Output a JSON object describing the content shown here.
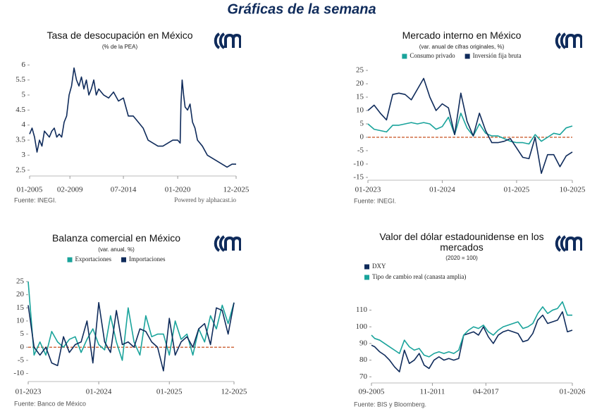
{
  "page_title": "Gráficas de la semana",
  "chart_data": [
    {
      "type": "line",
      "title": "Tasa de desocupación en México",
      "subtitle": "(% de la PEA)",
      "x": [
        2005.0,
        2005.25,
        2005.5,
        2005.75,
        2006.0,
        2006.25,
        2006.5,
        2006.75,
        2007.0,
        2007.25,
        2007.5,
        2007.75,
        2008.0,
        2008.25,
        2008.5,
        2008.75,
        2009.0,
        2009.25,
        2009.5,
        2009.75,
        2010.0,
        2010.25,
        2010.5,
        2010.75,
        2011.0,
        2011.25,
        2011.5,
        2011.75,
        2012.0,
        2012.5,
        2013.0,
        2013.5,
        2014.0,
        2014.5,
        2015.0,
        2015.5,
        2016.0,
        2016.5,
        2017.0,
        2017.5,
        2018.0,
        2018.5,
        2019.0,
        2019.5,
        2020.0,
        2020.25,
        2020.33,
        2020.45,
        2020.6,
        2020.75,
        2021.0,
        2021.25,
        2021.5,
        2021.75,
        2022.0,
        2022.5,
        2023.0,
        2023.5,
        2024.0,
        2024.5,
        2025.0,
        2025.5,
        2025.917
      ],
      "values": [
        3.7,
        3.9,
        3.6,
        3.1,
        3.5,
        3.3,
        3.8,
        3.7,
        3.6,
        3.8,
        3.9,
        3.6,
        3.7,
        3.6,
        4.1,
        4.3,
        5.0,
        5.3,
        5.9,
        5.5,
        5.3,
        5.6,
        5.2,
        5.5,
        5.0,
        5.2,
        5.5,
        5.0,
        5.2,
        5.0,
        4.9,
        5.1,
        4.8,
        4.9,
        4.3,
        4.3,
        4.1,
        3.9,
        3.5,
        3.4,
        3.3,
        3.3,
        3.4,
        3.5,
        3.5,
        3.4,
        4.7,
        5.5,
        5.0,
        4.6,
        4.5,
        4.7,
        4.1,
        3.9,
        3.5,
        3.3,
        3.0,
        2.9,
        2.8,
        2.7,
        2.6,
        2.7,
        2.7
      ],
      "color": "#0f2b5b",
      "xlim": [
        2005.0,
        2025.917
      ],
      "xticks": [
        {
          "value": 2005.0,
          "label": "01-2005"
        },
        {
          "value": 2009.083,
          "label": "02-2009"
        },
        {
          "value": 2014.5,
          "label": "07-2014"
        },
        {
          "value": 2020.0,
          "label": "01-2020"
        },
        {
          "value": 2025.917,
          "label": "12-2025"
        }
      ],
      "ylim": [
        2.4,
        6.1
      ],
      "yticks": [
        2.5,
        3,
        3.5,
        4,
        4.5,
        5,
        5.5,
        6
      ],
      "source": "Fuente: INEGI.",
      "credit": "Powered by alphacast.io"
    },
    {
      "type": "line",
      "title": "Mercado interno en México",
      "subtitle": "(var. anual de cifras originales, %)",
      "categories": [
        "01-2023",
        null,
        null,
        null,
        null,
        null,
        null,
        null,
        null,
        null,
        null,
        null,
        "01-2024",
        null,
        null,
        null,
        null,
        null,
        null,
        null,
        null,
        null,
        null,
        null,
        "01-2025",
        null,
        null,
        null,
        null,
        null,
        null,
        null,
        null,
        "10-2025"
      ],
      "series": [
        {
          "name": "Consumo privado",
          "color": "#19a39b",
          "values": [
            5,
            3,
            2.5,
            2,
            4.5,
            4.5,
            5,
            5.5,
            5,
            5.5,
            5,
            3,
            4,
            7.5,
            1,
            9,
            3.5,
            0.5,
            5,
            1.5,
            0.5,
            0.5,
            -0.5,
            -1.5,
            -2,
            -2,
            -2.5,
            1,
            -1.5,
            0,
            1.5,
            1,
            3.5,
            4.2
          ]
        },
        {
          "name": "Inversión fija bruta",
          "color": "#0f2b5b",
          "values": [
            10,
            12,
            9,
            6.5,
            16,
            16.5,
            16,
            14,
            18,
            22,
            15,
            10,
            12.5,
            11,
            1,
            16.5,
            6,
            0.5,
            9,
            2.5,
            -2,
            -2,
            -1.5,
            -0.5,
            -4,
            -7.5,
            -8,
            0,
            -13.5,
            -6.5,
            -6.5,
            -11,
            -7,
            -5.5
          ]
        }
      ],
      "ylim": [
        -15,
        25
      ],
      "yticks": [
        -15,
        -10,
        -5,
        0,
        5,
        10,
        15,
        20,
        25
      ],
      "reference_line": 0,
      "reference_color": "#c8501e",
      "legend": "top",
      "source": "Fuente: INEGI."
    },
    {
      "type": "line",
      "title": "Balanza comercial en México",
      "subtitle": "(var. anual, %)",
      "categories": [
        "01-2023",
        null,
        null,
        null,
        null,
        null,
        null,
        null,
        null,
        null,
        null,
        null,
        "01-2024",
        null,
        null,
        null,
        null,
        null,
        null,
        null,
        null,
        null,
        null,
        null,
        "01-2025",
        null,
        null,
        null,
        null,
        null,
        null,
        null,
        null,
        null,
        null,
        "12-2025"
      ],
      "series": [
        {
          "name": "Exportaciones",
          "color": "#19a39b",
          "values": [
            25,
            -3,
            2,
            -3,
            6,
            2,
            0,
            3,
            4,
            -2,
            3,
            7,
            1,
            -1,
            12,
            2,
            -5,
            15,
            2,
            -3,
            12,
            4,
            5,
            5,
            -3,
            10,
            3,
            5,
            -3,
            7,
            2,
            12,
            7,
            16,
            9,
            17
          ]
        },
        {
          "name": "Importaciones",
          "color": "#0f2b5b",
          "values": [
            16,
            0,
            -3,
            0,
            -6,
            -7,
            4,
            -2,
            1,
            2,
            10,
            -6,
            17,
            2,
            -2,
            14,
            1,
            2,
            0,
            7,
            6,
            2,
            0,
            -9,
            11,
            -3,
            2,
            4,
            0,
            7,
            9,
            1,
            15,
            14,
            5,
            17
          ]
        }
      ],
      "ylim": [
        -12,
        25
      ],
      "yticks": [
        -10,
        -5,
        0,
        5,
        10,
        15,
        20,
        25
      ],
      "reference_line": 0,
      "reference_color": "#c8501e",
      "legend": "top",
      "source": "Fuente: Banco de México"
    },
    {
      "type": "line",
      "title": "Valor del dólar estadounidense en los mercados",
      "subtitle": "(2020 = 100)",
      "x": [
        2005.667,
        2006,
        2006.5,
        2007,
        2007.5,
        2008,
        2008.5,
        2009,
        2009.5,
        2010,
        2010.5,
        2011,
        2011.5,
        2012,
        2012.5,
        2013,
        2013.5,
        2014,
        2014.5,
        2015,
        2015.5,
        2016,
        2016.5,
        2017,
        2017.5,
        2018,
        2018.5,
        2019,
        2019.5,
        2020,
        2020.5,
        2021,
        2021.5,
        2022,
        2022.5,
        2023,
        2023.5,
        2024,
        2024.5,
        2025,
        2025.5,
        2026
      ],
      "series": [
        {
          "name": "DXY",
          "color": "#0f2b5b",
          "values": [
            89,
            88,
            85,
            83,
            80,
            76,
            73,
            86,
            78,
            80,
            84,
            77,
            75,
            80,
            82,
            80,
            81,
            80,
            81,
            95,
            96,
            97,
            95,
            100,
            94,
            90,
            95,
            97,
            98,
            97,
            96,
            91,
            92,
            96,
            104,
            107,
            102,
            103,
            104,
            109,
            97,
            98
          ]
        },
        {
          "name": "Tipo de cambio real (canasta amplia)",
          "color": "#19a39b",
          "values": [
            95,
            93,
            92,
            90,
            88,
            86,
            84,
            92,
            88,
            86,
            87,
            83,
            82,
            84,
            85,
            84,
            85,
            84,
            86,
            95,
            98,
            100,
            99,
            101,
            97,
            95,
            98,
            100,
            101,
            102,
            103,
            99,
            100,
            102,
            108,
            112,
            108,
            110,
            111,
            115,
            107,
            107
          ]
        }
      ],
      "xlim": [
        2005.667,
        2026.0
      ],
      "xticks": [
        {
          "value": 2005.667,
          "label": "09-2005"
        },
        {
          "value": 2011.833,
          "label": "11-2011"
        },
        {
          "value": 2017.25,
          "label": "04-2017"
        },
        {
          "value": 2026.0,
          "label": "01-2026"
        }
      ],
      "ylim": [
        68,
        117
      ],
      "yticks": [
        70,
        80,
        90,
        100,
        110
      ],
      "legend": "top-left",
      "source": "Fuente: BIS y Bloomberg."
    }
  ]
}
